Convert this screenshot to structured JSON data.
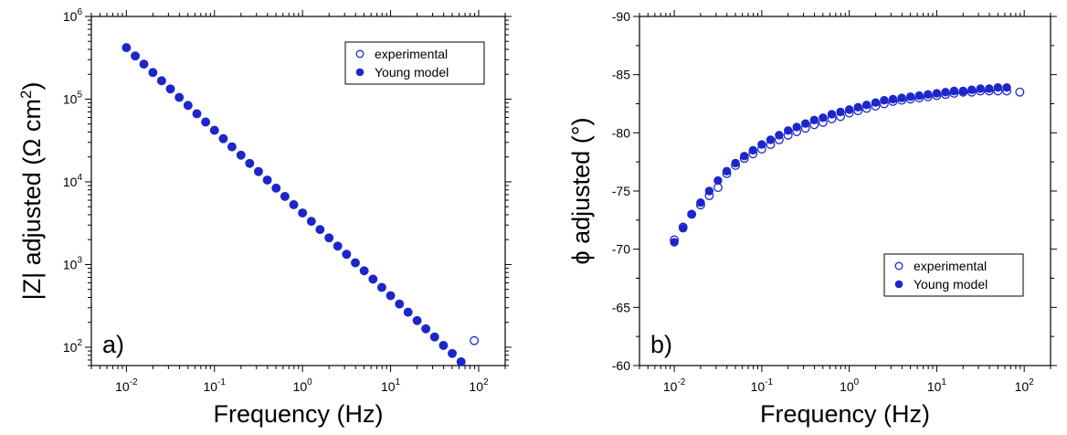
{
  "chart_data": [
    {
      "type": "scatter",
      "panel_label": "a)",
      "xlabel": "Frequency (Hz)",
      "ylabel_main": "|Z| adjusted (Ω cm",
      "ylabel_sup": "2",
      "ylabel_end": ")",
      "x_scale": "log",
      "y_scale": "log",
      "xlim": [
        0.004,
        200
      ],
      "ylim": [
        60,
        1000000
      ],
      "x_ticks": [
        {
          "value": 0.01,
          "base": "10",
          "exp": "-2"
        },
        {
          "value": 0.1,
          "base": "10",
          "exp": "-1"
        },
        {
          "value": 1,
          "base": "10",
          "exp": "0"
        },
        {
          "value": 10,
          "base": "10",
          "exp": "1"
        },
        {
          "value": 100,
          "base": "10",
          "exp": "2"
        }
      ],
      "y_ticks": [
        {
          "value": 100,
          "base": "10",
          "exp": "2"
        },
        {
          "value": 1000,
          "base": "10",
          "exp": "3"
        },
        {
          "value": 10000,
          "base": "10",
          "exp": "4"
        },
        {
          "value": 100000,
          "base": "10",
          "exp": "5"
        },
        {
          "value": 1000000,
          "base": "10",
          "exp": "6"
        }
      ],
      "legend": {
        "position": "top-right",
        "entries": [
          "experimental",
          "Young model"
        ]
      },
      "series": [
        {
          "name": "experimental",
          "marker": "open-circle",
          "x": [
            0.01,
            0.0126,
            0.0158,
            0.02,
            0.0251,
            0.0316,
            0.0398,
            0.0501,
            0.0631,
            0.0794,
            0.1,
            0.126,
            0.158,
            0.2,
            0.251,
            0.316,
            0.398,
            0.501,
            0.631,
            0.794,
            1,
            1.26,
            1.58,
            2,
            2.51,
            3.16,
            3.98,
            5.01,
            6.31,
            7.94,
            10,
            12.6,
            15.8,
            20,
            25.1,
            31.6,
            39.8,
            50.1,
            63.1,
            89
          ],
          "y": [
            420000,
            333000,
            265000,
            210000,
            167000,
            133000,
            105000,
            84000,
            66600,
            52900,
            42000,
            33300,
            26500,
            21000,
            16700,
            13300,
            10500,
            8400,
            6660,
            5290,
            4200,
            3330,
            2650,
            2100,
            1670,
            1330,
            1050,
            840,
            666,
            529,
            420,
            333,
            265,
            210,
            167,
            133,
            105,
            84,
            66.6,
            120
          ]
        },
        {
          "name": "Young model",
          "marker": "filled-circle",
          "x": [
            0.01,
            0.0126,
            0.0158,
            0.02,
            0.0251,
            0.0316,
            0.0398,
            0.0501,
            0.0631,
            0.0794,
            0.1,
            0.126,
            0.158,
            0.2,
            0.251,
            0.316,
            0.398,
            0.501,
            0.631,
            0.794,
            1,
            1.26,
            1.58,
            2,
            2.51,
            3.16,
            3.98,
            5.01,
            6.31,
            7.94,
            10,
            12.6,
            15.8,
            20,
            25.1,
            31.6,
            39.8,
            50.1,
            63.1
          ],
          "y": [
            420000,
            333000,
            265000,
            210000,
            167000,
            133000,
            105000,
            84000,
            66600,
            52900,
            42000,
            33300,
            26500,
            21000,
            16700,
            13300,
            10500,
            8400,
            6660,
            5290,
            4200,
            3330,
            2650,
            2100,
            1670,
            1330,
            1050,
            840,
            666,
            529,
            420,
            333,
            265,
            210,
            167,
            133,
            105,
            84,
            66.6
          ]
        }
      ]
    },
    {
      "type": "scatter",
      "panel_label": "b)",
      "xlabel": "Frequency (Hz)",
      "ylabel": "ϕ adjusted (°)",
      "x_scale": "log",
      "y_scale": "linear",
      "xlim": [
        0.004,
        200
      ],
      "ylim": [
        -60,
        -90
      ],
      "x_ticks": [
        {
          "value": 0.01,
          "base": "10",
          "exp": "-2"
        },
        {
          "value": 0.1,
          "base": "10",
          "exp": "-1"
        },
        {
          "value": 1,
          "base": "10",
          "exp": "0"
        },
        {
          "value": 10,
          "base": "10",
          "exp": "1"
        },
        {
          "value": 100,
          "base": "10",
          "exp": "2"
        }
      ],
      "y_ticks": [
        -60,
        -65,
        -70,
        -75,
        -80,
        -85,
        -90
      ],
      "legend": {
        "position": "bottom-right",
        "entries": [
          "experimental",
          "Young model"
        ]
      },
      "series": [
        {
          "name": "experimental",
          "marker": "open-circle",
          "x": [
            0.01,
            0.0126,
            0.0158,
            0.02,
            0.0251,
            0.0316,
            0.0398,
            0.0501,
            0.0631,
            0.0794,
            0.1,
            0.126,
            0.158,
            0.2,
            0.251,
            0.316,
            0.398,
            0.501,
            0.631,
            0.794,
            1,
            1.26,
            1.58,
            2,
            2.51,
            3.16,
            3.98,
            5.01,
            6.31,
            7.94,
            10,
            12.6,
            15.8,
            20,
            25.1,
            31.6,
            39.8,
            50.1,
            63.1,
            89
          ],
          "y": [
            -70.8,
            -71.9,
            -73.0,
            -73.8,
            -74.6,
            -75.3,
            -76.5,
            -77.2,
            -77.8,
            -78.2,
            -78.6,
            -79.0,
            -79.4,
            -79.8,
            -80.1,
            -80.4,
            -80.7,
            -80.9,
            -81.2,
            -81.4,
            -81.7,
            -81.9,
            -82.1,
            -82.3,
            -82.5,
            -82.7,
            -82.8,
            -82.9,
            -83.0,
            -83.1,
            -83.2,
            -83.3,
            -83.4,
            -83.5,
            -83.5,
            -83.6,
            -83.6,
            -83.6,
            -83.6,
            -83.5
          ]
        },
        {
          "name": "Young model",
          "marker": "filled-circle",
          "x": [
            0.01,
            0.0126,
            0.0158,
            0.02,
            0.0251,
            0.0316,
            0.0398,
            0.0501,
            0.0631,
            0.0794,
            0.1,
            0.126,
            0.158,
            0.2,
            0.251,
            0.316,
            0.398,
            0.501,
            0.631,
            0.794,
            1,
            1.26,
            1.58,
            2,
            2.51,
            3.16,
            3.98,
            5.01,
            6.31,
            7.94,
            10,
            12.6,
            15.8,
            20,
            25.1,
            31.6,
            39.8,
            50.1,
            63.1
          ],
          "y": [
            -70.6,
            -71.8,
            -73.0,
            -74.0,
            -75.0,
            -75.9,
            -76.7,
            -77.4,
            -78.0,
            -78.5,
            -79.0,
            -79.4,
            -79.8,
            -80.2,
            -80.5,
            -80.8,
            -81.1,
            -81.3,
            -81.6,
            -81.8,
            -82.0,
            -82.2,
            -82.4,
            -82.6,
            -82.8,
            -82.9,
            -83.0,
            -83.1,
            -83.2,
            -83.3,
            -83.4,
            -83.5,
            -83.6,
            -83.6,
            -83.7,
            -83.8,
            -83.8,
            -83.9,
            -83.9
          ]
        }
      ]
    }
  ],
  "colors": {
    "marker": "#1d27c9",
    "axis": "#000000"
  }
}
